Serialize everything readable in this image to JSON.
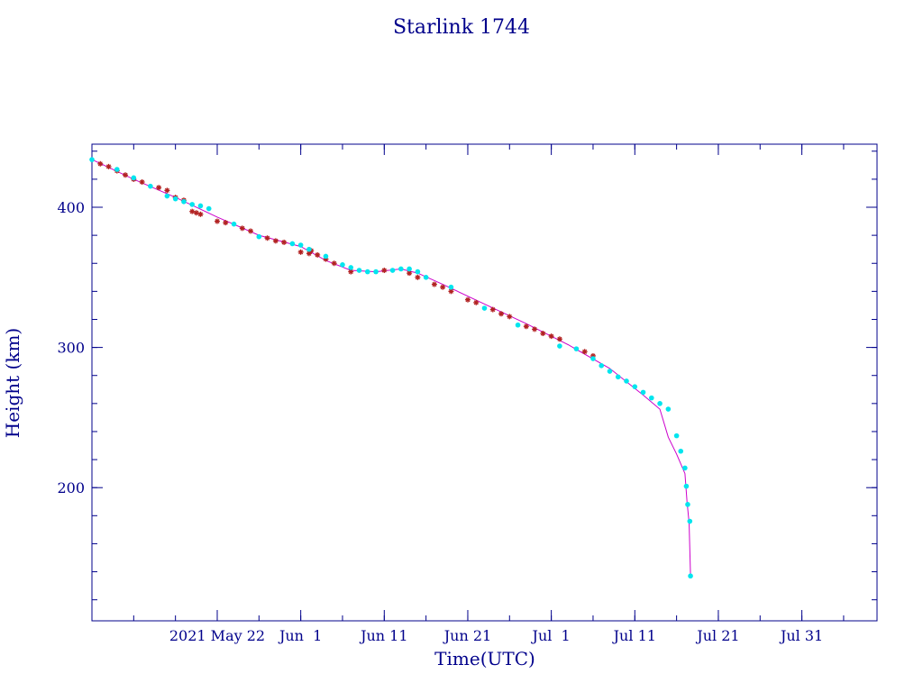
{
  "chart_data": {
    "type": "scatter",
    "title": "Starlink 1744",
    "xlabel": "Time(UTC)",
    "ylabel": "Height (km)",
    "x_range": [
      "2021-05-07",
      "2021-08-09"
    ],
    "ylim": [
      105,
      445
    ],
    "y_ticks": [
      200,
      300,
      400
    ],
    "y_minor_step": 20,
    "x_ticks": [
      {
        "date": "2021-05-22",
        "label": "2021 May 22"
      },
      {
        "date": "2021-06-01",
        "label": "Jun  1"
      },
      {
        "date": "2021-06-11",
        "label": "Jun 11"
      },
      {
        "date": "2021-06-21",
        "label": "Jun 21"
      },
      {
        "date": "2021-07-01",
        "label": "Jul  1"
      },
      {
        "date": "2021-07-11",
        "label": "Jul 11"
      },
      {
        "date": "2021-07-21",
        "label": "Jul 21"
      },
      {
        "date": "2021-07-31",
        "label": "Jul 31"
      }
    ],
    "x_minor_step_days": 5,
    "grid": false,
    "legend": "none",
    "colors": {
      "axes": "#00008b",
      "text": "#00008b",
      "line": "#cc00cc",
      "series_a": "#b22222",
      "series_b": "#00e5ee"
    },
    "trend_line": {
      "x": [
        "2021-05-07",
        "2021-05-12",
        "2021-05-17",
        "2021-05-22",
        "2021-05-27",
        "2021-06-01",
        "2021-06-04",
        "2021-06-07",
        "2021-06-10",
        "2021-06-13",
        "2021-06-15",
        "2021-06-18",
        "2021-06-23",
        "2021-06-28",
        "2021-07-03",
        "2021-07-08",
        "2021-07-12",
        "2021-07-14",
        "2021-07-15",
        "2021-07-16",
        "2021-07-17",
        "2021-07-17T06:00",
        "2021-07-17T12:00",
        "2021-07-17T16:00"
      ],
      "y": [
        434,
        420,
        407,
        393,
        380,
        372,
        362,
        355,
        354,
        356,
        353,
        345,
        331,
        317,
        302,
        285,
        266,
        256,
        236,
        224,
        210,
        190,
        175,
        137
      ]
    },
    "series": [
      {
        "marker": "asterisk",
        "color": "#b22222",
        "x": [
          "2021-05-08",
          "2021-05-09",
          "2021-05-10",
          "2021-05-11",
          "2021-05-12",
          "2021-05-13",
          "2021-05-15",
          "2021-05-16",
          "2021-05-17",
          "2021-05-18",
          "2021-05-19",
          "2021-05-19T12:00",
          "2021-05-20",
          "2021-05-22",
          "2021-05-23",
          "2021-05-25",
          "2021-05-26",
          "2021-05-28",
          "2021-05-29",
          "2021-05-30",
          "2021-06-01",
          "2021-06-02",
          "2021-06-02T06:00",
          "2021-06-03",
          "2021-06-04",
          "2021-06-05",
          "2021-06-07",
          "2021-06-11",
          "2021-06-14",
          "2021-06-15",
          "2021-06-17",
          "2021-06-18",
          "2021-06-19",
          "2021-06-21",
          "2021-06-22",
          "2021-06-24",
          "2021-06-25",
          "2021-06-26",
          "2021-06-28",
          "2021-06-29",
          "2021-06-30",
          "2021-07-01",
          "2021-07-02",
          "2021-07-05",
          "2021-07-06"
        ],
        "y": [
          431,
          429,
          426,
          423,
          420,
          418,
          414,
          412,
          407,
          405,
          397,
          396,
          395,
          390,
          389,
          385,
          383,
          378,
          376,
          375,
          368,
          367,
          369,
          366,
          363,
          360,
          354,
          355,
          353,
          350,
          345,
          343,
          340,
          334,
          332,
          327,
          324,
          322,
          315,
          313,
          310,
          308,
          306,
          297,
          294
        ]
      },
      {
        "marker": "dot",
        "color": "#00e5ee",
        "x": [
          "2021-05-07",
          "2021-05-10",
          "2021-05-12",
          "2021-05-14",
          "2021-05-16",
          "2021-05-17",
          "2021-05-18",
          "2021-05-19",
          "2021-05-20",
          "2021-05-21",
          "2021-05-24",
          "2021-05-27",
          "2021-05-31",
          "2021-06-01",
          "2021-06-02",
          "2021-06-04",
          "2021-06-06",
          "2021-06-07",
          "2021-06-08",
          "2021-06-09",
          "2021-06-10",
          "2021-06-12",
          "2021-06-13",
          "2021-06-14",
          "2021-06-15",
          "2021-06-16",
          "2021-06-19",
          "2021-06-23",
          "2021-06-27",
          "2021-07-02",
          "2021-07-04",
          "2021-07-06",
          "2021-07-07",
          "2021-07-08",
          "2021-07-09",
          "2021-07-10",
          "2021-07-11",
          "2021-07-12",
          "2021-07-13",
          "2021-07-14",
          "2021-07-15",
          "2021-07-16",
          "2021-07-16T12:00",
          "2021-07-17",
          "2021-07-17T04:00",
          "2021-07-17T08:00",
          "2021-07-17T14:00",
          "2021-07-17T16:00"
        ],
        "y": [
          434,
          427,
          421,
          415,
          408,
          406,
          404,
          402,
          401,
          399,
          388,
          379,
          374,
          373,
          370,
          365,
          359,
          357,
          355,
          354,
          354,
          355,
          356,
          356,
          354,
          350,
          343,
          328,
          316,
          301,
          299,
          292,
          287,
          283,
          279,
          276,
          272,
          268,
          264,
          260,
          256,
          237,
          226,
          214,
          201,
          188,
          176,
          137
        ]
      }
    ]
  }
}
